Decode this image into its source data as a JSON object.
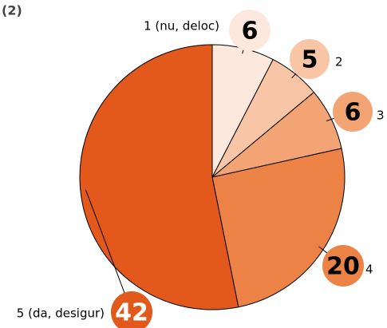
{
  "chart_data": {
    "type": "pie",
    "title": "(2)",
    "categories": [
      "1 (nu, deloc)",
      "2",
      "3",
      "4",
      "5 (da, desigur)"
    ],
    "values": [
      6,
      5,
      6,
      20,
      42
    ],
    "colors": [
      "#fce8dc",
      "#f8c6a6",
      "#f2a474",
      "#ec8245",
      "#e3581b"
    ]
  }
}
